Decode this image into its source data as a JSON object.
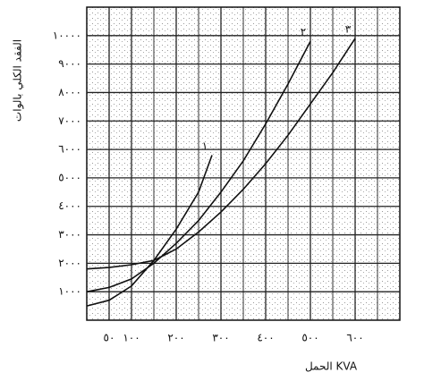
{
  "chart_data": {
    "type": "line",
    "y_label": "الفقد الكلي بالوات",
    "x_label": "الحمل KVA",
    "xlim": [
      0,
      700
    ],
    "ylim": [
      0,
      11000
    ],
    "xticks": [
      {
        "value": 50,
        "label": "٥٠"
      },
      {
        "value": 100,
        "label": "١٠٠"
      },
      {
        "value": 200,
        "label": "٢٠٠"
      },
      {
        "value": 300,
        "label": "٣٠٠"
      },
      {
        "value": 400,
        "label": "٤٠٠"
      },
      {
        "value": 500,
        "label": "٥٠٠"
      },
      {
        "value": 600,
        "label": "٦٠٠"
      }
    ],
    "yticks": [
      {
        "value": 1000,
        "label": "١٠٠٠"
      },
      {
        "value": 2000,
        "label": "٢٠٠٠"
      },
      {
        "value": 3000,
        "label": "٣٠٠٠"
      },
      {
        "value": 4000,
        "label": "٤٠٠٠"
      },
      {
        "value": 5000,
        "label": "٥٠٠٠"
      },
      {
        "value": 6000,
        "label": "٦٠٠٠"
      },
      {
        "value": 7000,
        "label": "٧٠٠٠"
      },
      {
        "value": 8000,
        "label": "٨٠٠٠"
      },
      {
        "value": 9000,
        "label": "٩٠٠٠"
      },
      {
        "value": 10000,
        "label": "١٠٠٠٠"
      }
    ],
    "grid": true,
    "series": [
      {
        "name": "١",
        "color": "#111111",
        "x": [
          0,
          50,
          100,
          150,
          200,
          250,
          280
        ],
        "values": [
          500,
          700,
          1200,
          2100,
          3200,
          4500,
          5800
        ]
      },
      {
        "name": "٢",
        "color": "#111111",
        "x": [
          0,
          50,
          100,
          150,
          200,
          250,
          300,
          350,
          400,
          450,
          500
        ],
        "values": [
          1000,
          1150,
          1450,
          2000,
          2700,
          3500,
          4500,
          5600,
          6900,
          8300,
          9800
        ]
      },
      {
        "name": "٣",
        "color": "#111111",
        "x": [
          0,
          50,
          100,
          150,
          200,
          250,
          300,
          350,
          400,
          450,
          500,
          550,
          600
        ],
        "values": [
          1800,
          1850,
          1950,
          2100,
          2500,
          3100,
          3800,
          4600,
          5500,
          6500,
          7600,
          8700,
          9900
        ]
      }
    ]
  }
}
